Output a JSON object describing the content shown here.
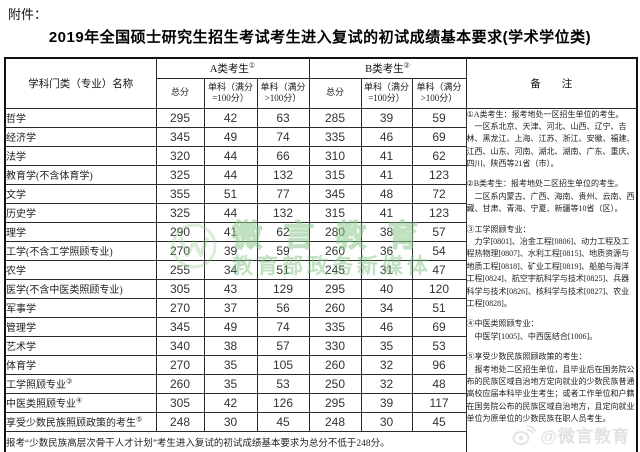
{
  "page": {
    "attachment_label": "附件：",
    "title": "2019年全国硕士研究生招生考试考生进入复试的初试成绩基本要求(学术学位类)"
  },
  "table": {
    "col1_header": "学科门类（专业）名称",
    "group_a": {
      "label": "A类考生",
      "sup": "①"
    },
    "group_b": {
      "label": "B类考生",
      "sup": "②"
    },
    "sub_total": "总分",
    "sub_100": "单科（满分=100分）",
    "sub_over100": "单科（满分>100分）",
    "remark_header": "备　　注",
    "rows": [
      {
        "name": "哲学",
        "sup": "",
        "a": [
          295,
          42,
          63
        ],
        "b": [
          285,
          39,
          59
        ]
      },
      {
        "name": "经济学",
        "sup": "",
        "a": [
          345,
          49,
          74
        ],
        "b": [
          335,
          46,
          69
        ]
      },
      {
        "name": "法学",
        "sup": "",
        "a": [
          320,
          44,
          66
        ],
        "b": [
          310,
          41,
          62
        ]
      },
      {
        "name": "教育学(不含体育学)",
        "sup": "",
        "a": [
          325,
          44,
          132
        ],
        "b": [
          315,
          41,
          123
        ]
      },
      {
        "name": "文学",
        "sup": "",
        "a": [
          355,
          51,
          77
        ],
        "b": [
          345,
          48,
          72
        ]
      },
      {
        "name": "历史学",
        "sup": "",
        "a": [
          325,
          44,
          132
        ],
        "b": [
          315,
          41,
          123
        ]
      },
      {
        "name": "理学",
        "sup": "",
        "a": [
          290,
          41,
          62
        ],
        "b": [
          280,
          38,
          57
        ]
      },
      {
        "name": "工学(不含工学照顾专业)",
        "sup": "",
        "a": [
          270,
          39,
          59
        ],
        "b": [
          260,
          36,
          54
        ]
      },
      {
        "name": "农学",
        "sup": "",
        "a": [
          255,
          34,
          51
        ],
        "b": [
          245,
          31,
          47
        ]
      },
      {
        "name": "医学(不含中医类照顾专业)",
        "sup": "",
        "a": [
          305,
          43,
          129
        ],
        "b": [
          295,
          40,
          120
        ]
      },
      {
        "name": "军事学",
        "sup": "",
        "a": [
          270,
          37,
          56
        ],
        "b": [
          260,
          34,
          51
        ]
      },
      {
        "name": "管理学",
        "sup": "",
        "a": [
          345,
          49,
          74
        ],
        "b": [
          335,
          46,
          69
        ]
      },
      {
        "name": "艺术学",
        "sup": "",
        "a": [
          340,
          38,
          57
        ],
        "b": [
          330,
          35,
          53
        ]
      },
      {
        "name": "体育学",
        "sup": "",
        "a": [
          270,
          35,
          105
        ],
        "b": [
          260,
          32,
          96
        ]
      },
      {
        "name": "工学照顾专业",
        "sup": "③",
        "a": [
          260,
          35,
          53
        ],
        "b": [
          250,
          32,
          48
        ]
      },
      {
        "name": "中医类照顾专业",
        "sup": "④",
        "a": [
          305,
          42,
          126
        ],
        "b": [
          295,
          39,
          117
        ]
      },
      {
        "name": "享受少数民族照顾政策的考生",
        "sup": "⑤",
        "a": [
          248,
          30,
          45
        ],
        "b": [
          248,
          30,
          45
        ]
      }
    ],
    "remarks": [
      "①A类考生：报考地处一区招生单位的考生。",
      "　一区系北京、天津、河北、山西、辽宁、吉林、黑龙江、上海、江苏、浙江、安徽、福建、江西、山东、河南、湖北、湖南、广东、重庆、四川、陕西等21省（市）。",
      "②B类考生：报考地处二区招生单位的考生。",
      "　二区系内蒙古、广西、海南、贵州、云南、西藏、甘肃、青海、宁夏、新疆等10省（区）。",
      "③工学照顾专业：",
      "　力学[0801]、冶金工程[0806]、动力工程及工程热物理[0807]、水利工程[0815]、地质资源与地质工程[0818]、矿业工程[0819]、船舶与海洋工程[0824]、航空宇航科学与技术[0825]、兵器科学与技术[0826]、核科学与技术[0827]、农业工程[0828]。",
      "④中医类照顾专业：",
      "　中医学[1005]、中西医结合[1006]。",
      "⑤享受少数民族照顾政策的考生：",
      "　报考地处二区招生单位，且毕业后在国务院公布的民族区域自治地方定向就业的少数民族普通高校应届本科毕业生考生；或者工作单位和户籍在国务院公布的民族区域自治地方，且定向就业单位为原单位的少数民族在职人员考生。"
    ],
    "footer": "报考“少数民族高层次骨干人才计划”考生进入复试的初试成绩基本要求为总分不低于248分。"
  },
  "watermarks": {
    "center_line1": "微言教育",
    "center_line2": "教育部政务新媒体",
    "center_color": "#8fc88f",
    "bottom_right_text": "@微言教育",
    "bottom_right_color": "#e4e1e1"
  }
}
